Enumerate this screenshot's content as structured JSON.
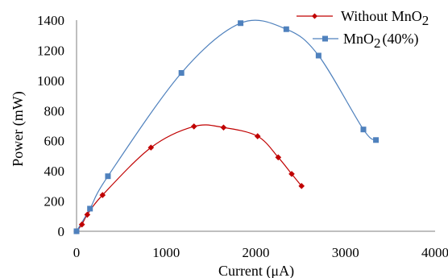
{
  "chart_data": {
    "type": "scatter",
    "xlabel": "Current (μA)",
    "ylabel": "Power (mW)",
    "xlim": [
      0,
      4000
    ],
    "ylim": [
      0,
      1400
    ],
    "xticks": [
      "0",
      "1000",
      "2000",
      "3000",
      "4000"
    ],
    "yticks": [
      "0",
      "200",
      "400",
      "600",
      "800",
      "1000",
      "1200",
      "1400"
    ],
    "grid": false,
    "legend_position": "top-right",
    "series": [
      {
        "name": "Without MnO",
        "name_sub": "2",
        "color": "#c00000",
        "marker": "diamond",
        "x": [
          0,
          60,
          120,
          290,
          830,
          1310,
          1640,
          2020,
          2250,
          2400,
          2510
        ],
        "y": [
          0,
          45,
          110,
          240,
          555,
          695,
          688,
          630,
          490,
          380,
          300
        ]
      },
      {
        "name": "MnO",
        "name_sub": "2",
        "name_suffix": "(40%)",
        "color": "#4f81bd",
        "marker": "square",
        "x": [
          0,
          150,
          350,
          1170,
          1830,
          2340,
          2700,
          3200,
          3340
        ],
        "y": [
          0,
          150,
          365,
          1050,
          1380,
          1340,
          1165,
          675,
          605
        ]
      }
    ]
  }
}
